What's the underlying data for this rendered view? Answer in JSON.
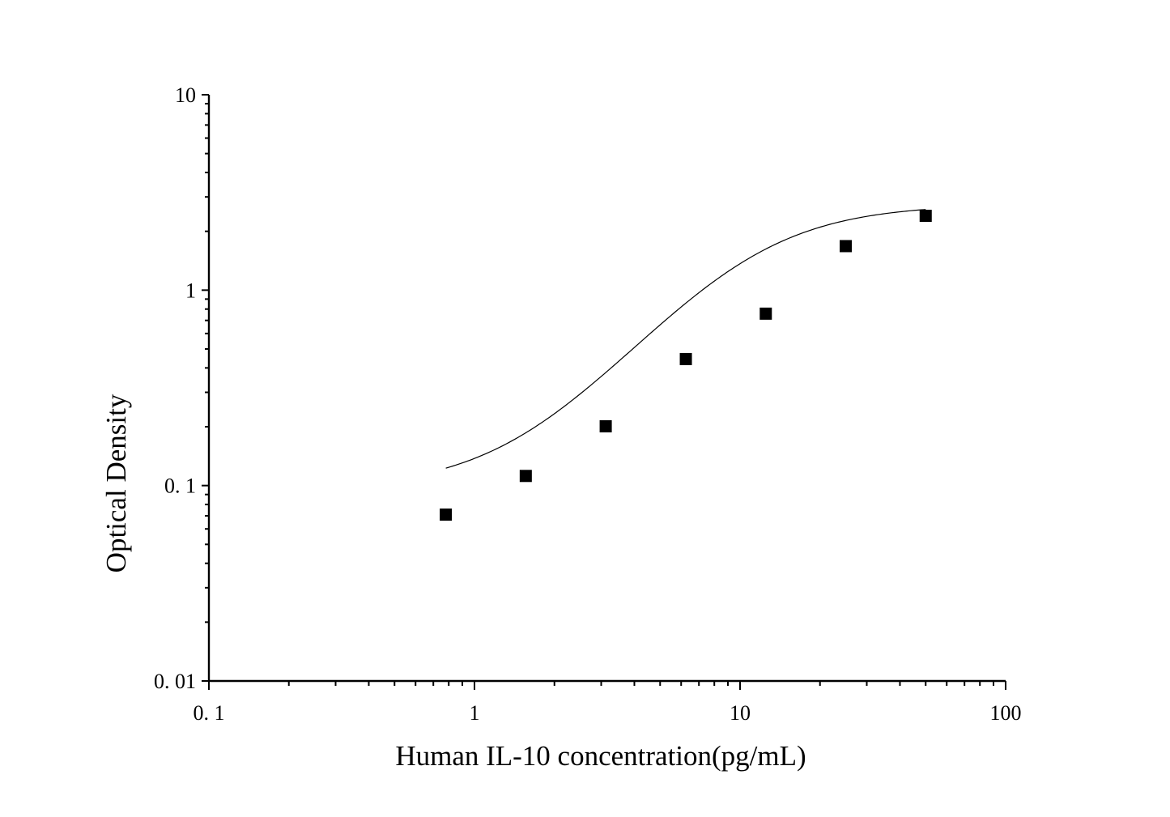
{
  "chart_data": {
    "type": "scatter",
    "xlabel": "Human IL-10 concentration(pg/mL)",
    "ylabel": "Optical Density",
    "x_scale": "log",
    "y_scale": "log",
    "xlim": [
      0.1,
      100
    ],
    "ylim": [
      0.01,
      10
    ],
    "x_ticks": [
      {
        "value": 0.1,
        "label": "0. 1"
      },
      {
        "value": 1,
        "label": "1"
      },
      {
        "value": 10,
        "label": "10"
      },
      {
        "value": 100,
        "label": "100"
      }
    ],
    "y_ticks": [
      {
        "value": 0.01,
        "label": "0. 01"
      },
      {
        "value": 0.1,
        "label": "0. 1"
      },
      {
        "value": 1,
        "label": "1"
      },
      {
        "value": 10,
        "label": "10"
      }
    ],
    "grid": false,
    "marker": "square",
    "series": [
      {
        "points": [
          {
            "x": 0.78,
            "y": 0.071
          },
          {
            "x": 1.56,
            "y": 0.112
          },
          {
            "x": 3.12,
            "y": 0.201
          },
          {
            "x": 6.25,
            "y": 0.444
          },
          {
            "x": 12.5,
            "y": 0.758
          },
          {
            "x": 25,
            "y": 1.68
          },
          {
            "x": 50,
            "y": 2.4
          }
        ]
      }
    ],
    "fit_curve": {
      "type": "four-parameter logistic",
      "x_range": [
        0.78,
        50
      ],
      "bottom": 0.095,
      "top": 2.75,
      "ec50": 10.5,
      "hill": 1.75
    }
  }
}
